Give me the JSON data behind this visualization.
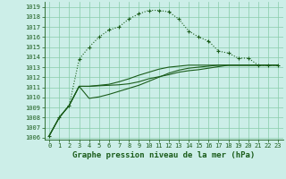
{
  "background_color": "#cceee8",
  "grid_color": "#88ccaa",
  "line_color": "#1a5c1a",
  "xlabel": "Graphe pression niveau de la mer (hPa)",
  "xlabel_fontsize": 6.5,
  "tick_fontsize": 5.0,
  "ylim": [
    1005.8,
    1019.5
  ],
  "xlim": [
    -0.5,
    23.5
  ],
  "ytick_vals": [
    1006,
    1007,
    1008,
    1009,
    1010,
    1011,
    1012,
    1013,
    1014,
    1015,
    1016,
    1017,
    1018,
    1019
  ],
  "xtick_vals": [
    0,
    1,
    2,
    3,
    4,
    5,
    6,
    7,
    8,
    9,
    10,
    11,
    12,
    13,
    14,
    15,
    16,
    17,
    18,
    19,
    20,
    21,
    22,
    23
  ],
  "series_dotted": [
    1006.2,
    1008.0,
    1009.2,
    1013.8,
    1015.0,
    1016.0,
    1016.7,
    1017.0,
    1017.8,
    1018.3,
    1018.65,
    1018.65,
    1018.5,
    1017.8,
    1016.6,
    1016.0,
    1015.6,
    1014.6,
    1014.4,
    1013.9,
    1013.9,
    1013.2,
    1013.2,
    1013.2
  ],
  "series_a": [
    1006.2,
    1008.0,
    1009.2,
    1011.1,
    1011.1,
    1011.15,
    1011.2,
    1011.25,
    1011.35,
    1011.55,
    1011.85,
    1012.05,
    1012.25,
    1012.5,
    1012.65,
    1012.75,
    1012.9,
    1013.05,
    1013.2,
    1013.2,
    1013.2,
    1013.2,
    1013.2,
    1013.2
  ],
  "series_b": [
    1006.2,
    1008.0,
    1009.2,
    1011.1,
    1011.1,
    1011.2,
    1011.3,
    1011.55,
    1011.85,
    1012.2,
    1012.5,
    1012.8,
    1013.0,
    1013.1,
    1013.2,
    1013.2,
    1013.2,
    1013.2,
    1013.2,
    1013.2,
    1013.2,
    1013.2,
    1013.2,
    1013.2
  ],
  "series_c": [
    1006.2,
    1008.0,
    1009.2,
    1011.1,
    1009.9,
    1010.05,
    1010.3,
    1010.6,
    1010.9,
    1011.2,
    1011.6,
    1012.0,
    1012.4,
    1012.7,
    1012.9,
    1013.0,
    1013.1,
    1013.2,
    1013.2,
    1013.2,
    1013.2,
    1013.2,
    1013.2,
    1013.2
  ]
}
